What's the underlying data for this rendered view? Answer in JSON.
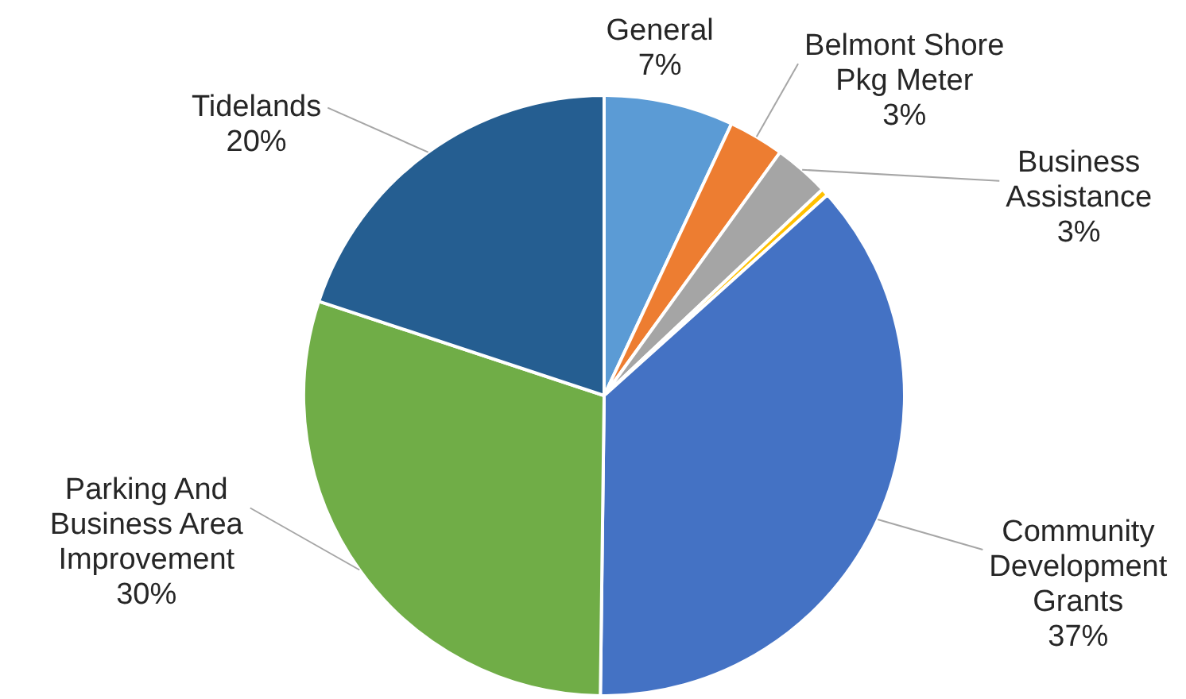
{
  "chart_data": {
    "type": "pie",
    "categories": [
      "General",
      "Belmont Shore Pkg Meter",
      "Business Assistance",
      null,
      "Community Development Grants",
      "Parking And Business Area Improvement",
      "Tidelands"
    ],
    "values": [
      7,
      3,
      3,
      0.4,
      37,
      30,
      20
    ],
    "value_labels": [
      "7%",
      "3%",
      "3%",
      null,
      "37%",
      "30%",
      "20%"
    ],
    "colors": [
      "#5b9bd5",
      "#ed7d31",
      "#a5a5a5",
      "#ffc000",
      "#4472c4",
      "#70ad47",
      "#255e91"
    ],
    "legend": false
  }
}
